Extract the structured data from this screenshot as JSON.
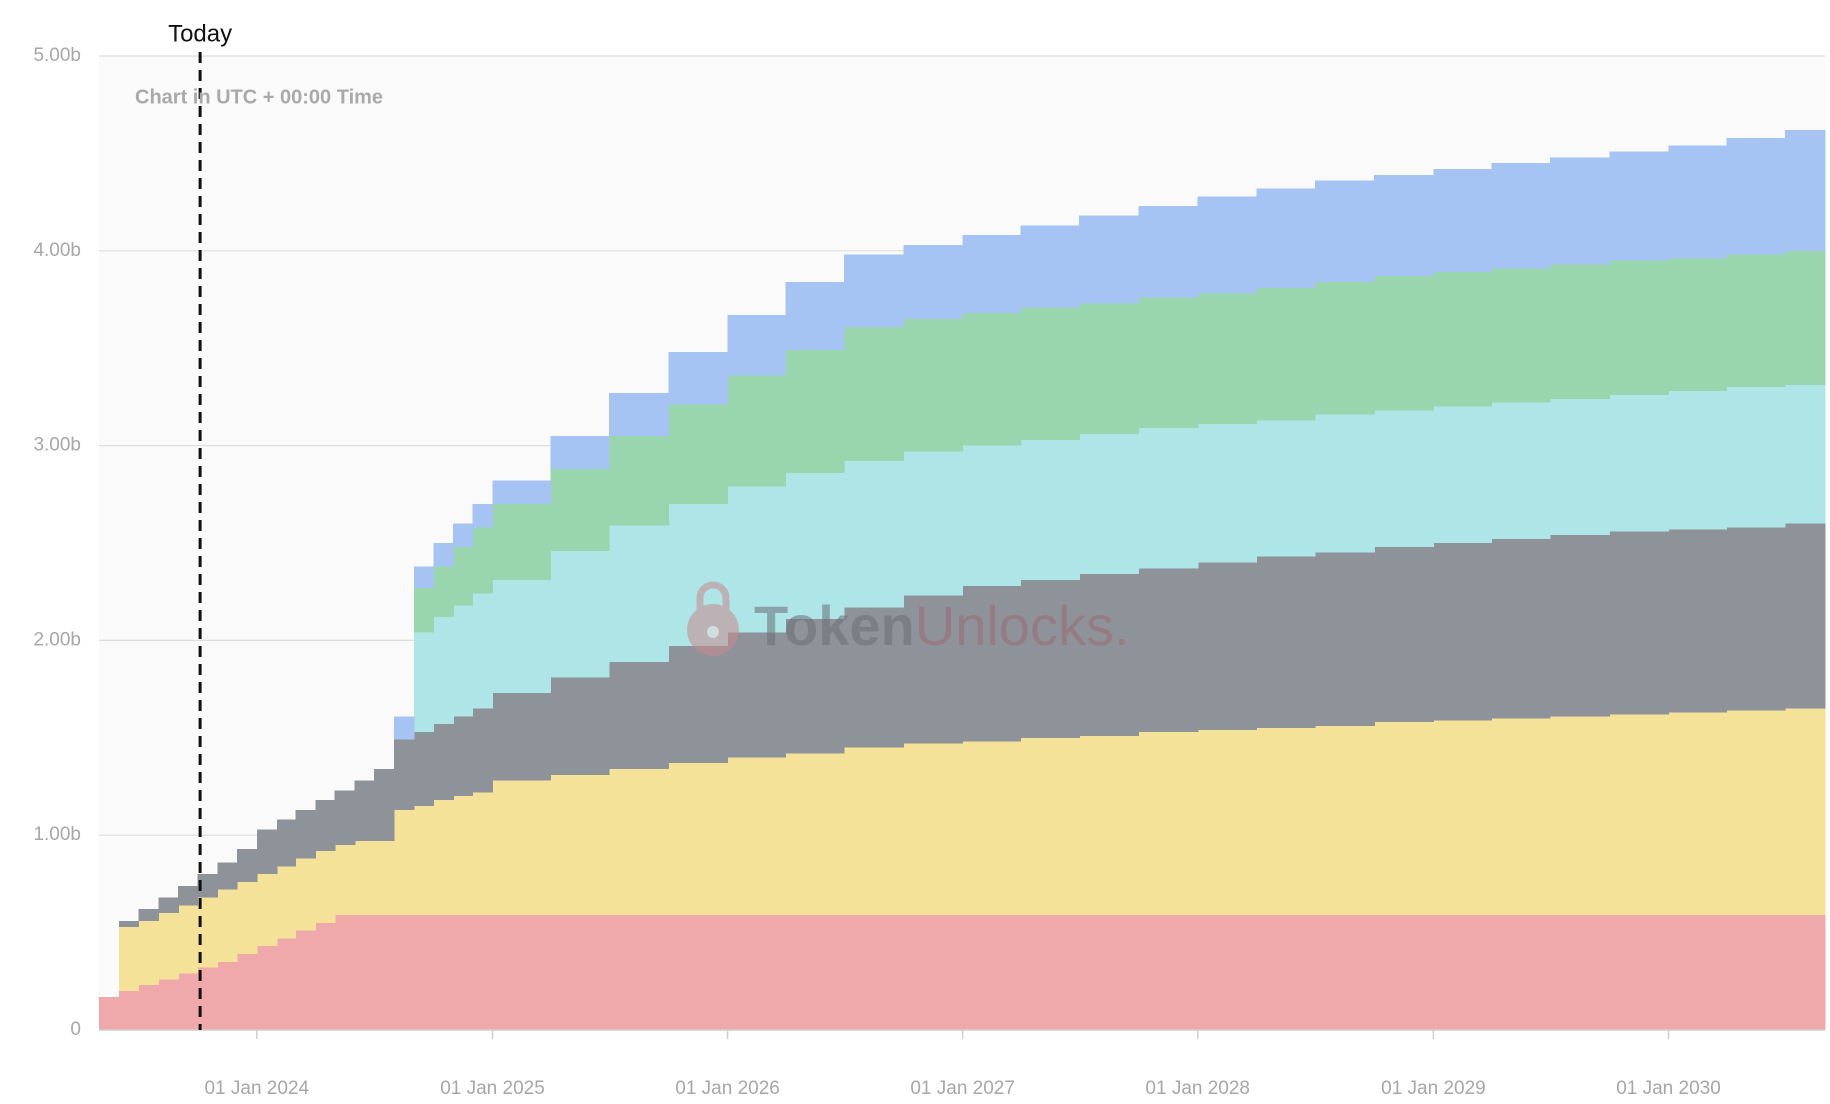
{
  "chart_data": {
    "type": "stacked-step-area",
    "subtitle": "Chart in UTC + 00:00 Time",
    "annotation": {
      "text": "Today",
      "x": "2023-10-05"
    },
    "watermark": [
      "Token",
      "Unlocks."
    ],
    "x": [
      "2023-05-01",
      "2023-06-01",
      "2023-07-01",
      "2023-08-01",
      "2023-09-01",
      "2023-10-01",
      "2023-11-01",
      "2023-12-01",
      "2024-01-01",
      "2024-02-01",
      "2024-03-01",
      "2024-04-01",
      "2024-05-01",
      "2024-06-01",
      "2024-07-01",
      "2024-08-01",
      "2024-09-01",
      "2024-10-01",
      "2024-11-01",
      "2024-12-01",
      "2025-01-01",
      "2025-04-01",
      "2025-07-01",
      "2025-10-01",
      "2026-01-01",
      "2026-04-01",
      "2026-07-01",
      "2026-10-01",
      "2027-01-01",
      "2027-04-01",
      "2027-07-01",
      "2027-10-01",
      "2028-01-01",
      "2028-04-01",
      "2028-07-01",
      "2028-10-01",
      "2029-01-01",
      "2029-04-01",
      "2029-07-01",
      "2029-10-01",
      "2030-01-01",
      "2030-04-01",
      "2030-07-01"
    ],
    "xlim": [
      "2023-05-01",
      "2030-09-01"
    ],
    "xticks": [
      {
        "value": "2024-01-01",
        "label": "01 Jan 2024"
      },
      {
        "value": "2025-01-01",
        "label": "01 Jan 2025"
      },
      {
        "value": "2026-01-01",
        "label": "01 Jan 2026"
      },
      {
        "value": "2027-01-01",
        "label": "01 Jan 2027"
      },
      {
        "value": "2028-01-01",
        "label": "01 Jan 2028"
      },
      {
        "value": "2029-01-01",
        "label": "01 Jan 2029"
      },
      {
        "value": "2030-01-01",
        "label": "01 Jan 2030"
      }
    ],
    "ylim": [
      0,
      5
    ],
    "yticks": [
      0,
      {
        "value": 1,
        "label": "1.00b"
      },
      {
        "value": 2,
        "label": "2.00b"
      },
      {
        "value": 3,
        "label": "3.00b"
      },
      {
        "value": 4,
        "label": "4.00b"
      },
      {
        "value": 5,
        "label": "5.00b"
      }
    ],
    "grid": true,
    "series": [
      {
        "color": "#f0a9ab",
        "values": [
          0.17,
          0.2,
          0.23,
          0.26,
          0.29,
          0.32,
          0.35,
          0.39,
          0.43,
          0.47,
          0.51,
          0.55,
          0.59,
          0.59,
          0.59,
          0.59,
          0.59,
          0.59,
          0.59,
          0.59,
          0.59,
          0.59,
          0.59,
          0.59,
          0.59,
          0.59,
          0.59,
          0.59,
          0.59,
          0.59,
          0.59,
          0.59,
          0.59,
          0.59,
          0.59,
          0.59,
          0.59,
          0.59,
          0.59,
          0.59,
          0.59,
          0.59,
          0.59
        ]
      },
      {
        "color": "#f3e297",
        "values": [
          0,
          0.33,
          0.33,
          0.34,
          0.35,
          0.36,
          0.37,
          0.37,
          0.37,
          0.37,
          0.37,
          0.37,
          0.36,
          0.38,
          0.38,
          0.54,
          0.56,
          0.59,
          0.61,
          0.63,
          0.69,
          0.72,
          0.75,
          0.78,
          0.81,
          0.83,
          0.86,
          0.88,
          0.89,
          0.91,
          0.92,
          0.94,
          0.95,
          0.96,
          0.97,
          0.99,
          1.0,
          1.01,
          1.02,
          1.03,
          1.04,
          1.05,
          1.06
        ]
      },
      {
        "color": "#8e939a",
        "values": [
          0,
          0.03,
          0.06,
          0.08,
          0.1,
          0.12,
          0.14,
          0.17,
          0.23,
          0.24,
          0.25,
          0.26,
          0.28,
          0.31,
          0.37,
          0.36,
          0.38,
          0.39,
          0.41,
          0.43,
          0.45,
          0.5,
          0.55,
          0.6,
          0.64,
          0.69,
          0.72,
          0.76,
          0.8,
          0.81,
          0.83,
          0.84,
          0.86,
          0.88,
          0.89,
          0.9,
          0.91,
          0.92,
          0.93,
          0.94,
          0.94,
          0.94,
          0.95
        ]
      },
      {
        "color": "#aee5e6",
        "values": [
          0,
          0,
          0,
          0,
          0,
          0,
          0,
          0,
          0,
          0,
          0,
          0,
          0,
          0,
          0,
          0,
          0.51,
          0.55,
          0.57,
          0.59,
          0.58,
          0.65,
          0.7,
          0.73,
          0.75,
          0.75,
          0.75,
          0.74,
          0.72,
          0.72,
          0.72,
          0.72,
          0.71,
          0.7,
          0.71,
          0.7,
          0.7,
          0.7,
          0.7,
          0.7,
          0.71,
          0.72,
          0.71
        ]
      },
      {
        "color": "#9ad6ad",
        "values": [
          0,
          0,
          0,
          0,
          0,
          0,
          0,
          0,
          0,
          0,
          0,
          0,
          0,
          0,
          0,
          0,
          0.23,
          0.26,
          0.3,
          0.34,
          0.39,
          0.42,
          0.46,
          0.51,
          0.57,
          0.63,
          0.69,
          0.68,
          0.68,
          0.68,
          0.67,
          0.67,
          0.67,
          0.68,
          0.68,
          0.69,
          0.69,
          0.69,
          0.69,
          0.69,
          0.68,
          0.68,
          0.69
        ]
      },
      {
        "color": "#a5c4f3",
        "values": [
          0,
          0,
          0,
          0,
          0,
          0,
          0,
          0,
          0,
          0,
          0,
          0,
          0,
          0,
          0,
          0.12,
          0.11,
          0.12,
          0.12,
          0.12,
          0.12,
          0.17,
          0.22,
          0.27,
          0.31,
          0.35,
          0.37,
          0.38,
          0.4,
          0.42,
          0.45,
          0.47,
          0.5,
          0.51,
          0.52,
          0.52,
          0.53,
          0.54,
          0.55,
          0.56,
          0.58,
          0.6,
          0.62
        ]
      }
    ]
  }
}
